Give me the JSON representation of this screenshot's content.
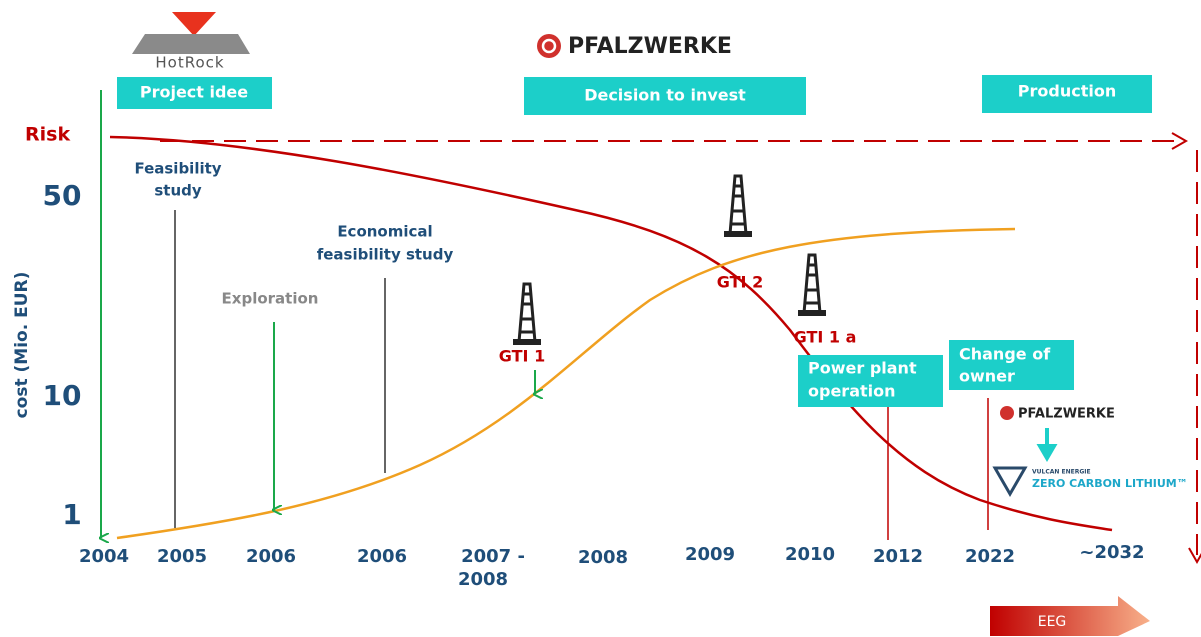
{
  "logos": {
    "hotrock": "HotRock",
    "pfalzwerke": "PFALZWERKE",
    "pfalzwerke_small": "PFALZWERKE",
    "vulcan": "VULCAN ENERGIE",
    "zcl": "ZERO CARBON LITHIUM™"
  },
  "phases": [
    "Project idee",
    "Decision to invest",
    "Production"
  ],
  "risk_label": "Risk",
  "y_axis": {
    "label": "cost (Mio. EUR)",
    "ticks": [
      "50",
      "10",
      "1"
    ]
  },
  "years": [
    "2004",
    "2005",
    "2006",
    "2006",
    [
      "2007 -",
      "2008"
    ],
    "2008",
    "2009",
    "2010",
    "2012",
    "2022",
    "~2032"
  ],
  "steps": {
    "feasibility": [
      "Feasibility",
      "study"
    ],
    "economical": [
      "Economical",
      "feasibility study"
    ],
    "exploration": "Exploration"
  },
  "wells": [
    "GTI 1",
    "GTI 2",
    "GTI 1 a"
  ],
  "events": {
    "power_plant": [
      "Power plant",
      "operation"
    ],
    "owner": [
      "Change of",
      "owner"
    ]
  },
  "eeg": "EEG"
}
